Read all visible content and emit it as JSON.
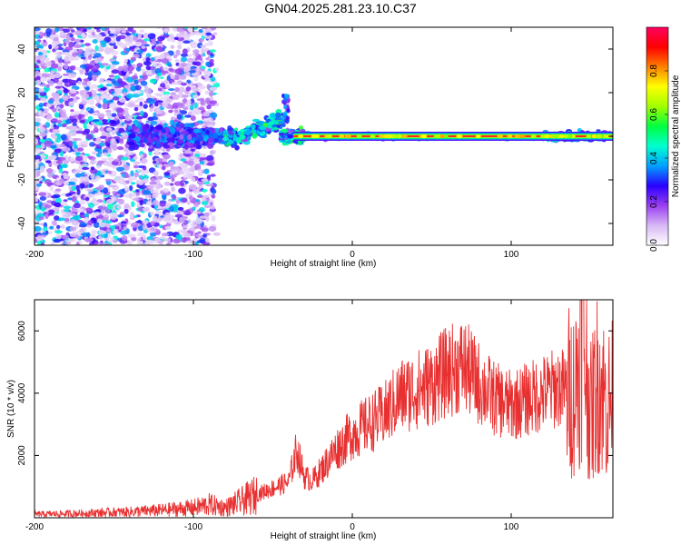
{
  "title": "GN04.2025.281.23.10.C37",
  "chart_data": [
    {
      "type": "heatmap",
      "xlabel": "Height of straight line (km)",
      "ylabel": "Frequency (Hz)",
      "xlim": [
        -200,
        164
      ],
      "ylim": [
        -50,
        50
      ],
      "xticks": [
        "-200",
        "-100",
        "0",
        "100"
      ],
      "yticks": [
        "40",
        "20",
        "0",
        "-20",
        "-40"
      ],
      "colorbar": {
        "label": "Normalized spectral amplitude",
        "range": [
          0,
          1
        ],
        "ticks": [
          "0.0",
          "0.2",
          "0.4",
          "0.6",
          "0.8"
        ],
        "colors": [
          "#ffffff",
          "#d7b8f5",
          "#9a3ef0",
          "#2a00ff",
          "#00a0ff",
          "#00ffd0",
          "#00ff40",
          "#a0ff00",
          "#ffff00",
          "#ff8000",
          "#ff0000",
          "#ff0060"
        ]
      },
      "line": {
        "y": 0,
        "x_from": -37,
        "x_to": 164,
        "amplitude": 0.95
      },
      "grid": false
    },
    {
      "type": "line",
      "xlabel": "Height of straight line (km)",
      "ylabel": "SNR (10 * v/v)",
      "xlim": [
        -200,
        164
      ],
      "ylim": [
        0,
        7000
      ],
      "xticks": [
        "-200",
        "-100",
        "0",
        "100"
      ],
      "yticks": [
        "6000",
        "4000",
        "2000"
      ],
      "color": "#e83030",
      "series": [
        {
          "x": [
            -200,
            -180,
            -160,
            -140,
            -120,
            -100,
            -90,
            -80,
            -70,
            -60,
            -50,
            -40,
            -35,
            -30,
            -25,
            -20,
            -10,
            0,
            10,
            20,
            30,
            40,
            50,
            60,
            70,
            80,
            90,
            100,
            110,
            120,
            130,
            140,
            145,
            150,
            155,
            160,
            164
          ],
          "values": [
            110,
            130,
            160,
            190,
            240,
            320,
            420,
            320,
            520,
            750,
            950,
            1150,
            2200,
            1300,
            1200,
            1500,
            2200,
            2700,
            3000,
            3300,
            3900,
            4100,
            4300,
            4700,
            4900,
            4300,
            3800,
            3600,
            3800,
            4000,
            4200,
            4000,
            6000,
            3300,
            4500,
            3600,
            3800
          ]
        }
      ],
      "grid": false
    }
  ]
}
